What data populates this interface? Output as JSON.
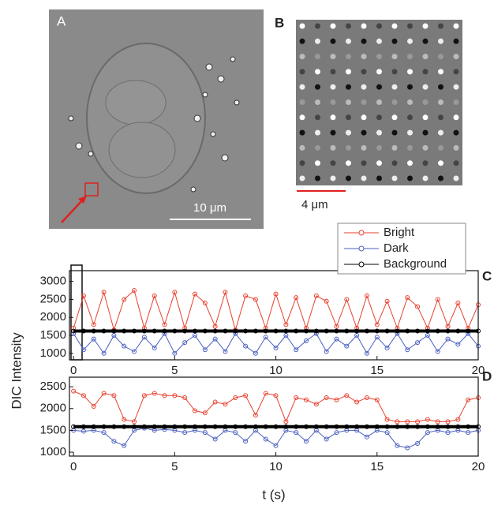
{
  "images": [
    {
      "label": "A",
      "scale_bar": "10 μm"
    },
    {
      "label": "B",
      "scale_bar": "4 μm"
    }
  ],
  "chart_data": [
    {
      "type": "line",
      "label": "C",
      "ylabel": "DIC Intensity",
      "legend": "top-right",
      "x": [
        0,
        0.5,
        1,
        1.5,
        2,
        2.5,
        3,
        3.5,
        4,
        4.5,
        5,
        5.5,
        6,
        6.5,
        7,
        7.5,
        8,
        8.5,
        9,
        9.5,
        10,
        10.5,
        11,
        11.5,
        12,
        12.5,
        13,
        13.5,
        14,
        14.5,
        15,
        15.5,
        16,
        16.5,
        17,
        17.5,
        18,
        18.5,
        19,
        19.5,
        20
      ],
      "series": [
        {
          "name": "Bright",
          "color": "#e8412f",
          "values": [
            1700,
            2600,
            1800,
            2700,
            1650,
            2500,
            2750,
            1700,
            2600,
            1800,
            2700,
            1700,
            2650,
            2400,
            1750,
            2700,
            1650,
            2600,
            2500,
            1700,
            2650,
            1800,
            2550,
            1700,
            2600,
            2450,
            1750,
            2500,
            1700,
            2600,
            1800,
            2450,
            1700,
            2550,
            2300,
            1700,
            2500,
            1750,
            2400,
            1700,
            2350
          ]
        },
        {
          "name": "Dark",
          "color": "#4a5fc0",
          "values": [
            1550,
            1100,
            1400,
            1000,
            1500,
            1200,
            1050,
            1450,
            1150,
            1550,
            1000,
            1300,
            1500,
            1100,
            1400,
            1050,
            1550,
            1200,
            1000,
            1450,
            1150,
            1500,
            1100,
            1350,
            1550,
            1050,
            1400,
            1200,
            1500,
            1000,
            1450,
            1150,
            1550,
            1100,
            1300,
            1500,
            1050,
            1400,
            1250,
            1550,
            1200
          ]
        },
        {
          "name": "Background",
          "color": "#000000",
          "values": [
            1620,
            1620,
            1620,
            1620,
            1620,
            1620,
            1620,
            1620,
            1620,
            1620,
            1620,
            1620,
            1620,
            1620,
            1620,
            1620,
            1620,
            1620,
            1620,
            1620,
            1620,
            1620,
            1620,
            1620,
            1620,
            1620,
            1620,
            1620,
            1620,
            1620,
            1620,
            1620,
            1620,
            1620,
            1620,
            1620,
            1620,
            1620,
            1620,
            1620,
            1620
          ]
        }
      ],
      "xlim": [
        -0.2,
        20
      ],
      "xticks": [
        0,
        5,
        10,
        15,
        20
      ],
      "ylim": [
        820,
        3300
      ],
      "yticks": [
        1000,
        1500,
        2000,
        2500,
        3000
      ]
    },
    {
      "type": "line",
      "label": "D",
      "xlabel": "t (s)",
      "x": [
        0,
        0.5,
        1,
        1.5,
        2,
        2.5,
        3,
        3.5,
        4,
        4.5,
        5,
        5.5,
        6,
        6.5,
        7,
        7.5,
        8,
        8.5,
        9,
        9.5,
        10,
        10.5,
        11,
        11.5,
        12,
        12.5,
        13,
        13.5,
        14,
        14.5,
        15,
        15.5,
        16,
        16.5,
        17,
        17.5,
        18,
        18.5,
        19,
        19.5,
        20
      ],
      "series": [
        {
          "color": "#e8412f",
          "values": [
            2400,
            2300,
            2050,
            2350,
            2300,
            1750,
            1700,
            2300,
            2350,
            2300,
            2300,
            2250,
            1950,
            1900,
            2150,
            2100,
            2250,
            2300,
            1850,
            2350,
            2300,
            1700,
            2250,
            2200,
            2100,
            2250,
            2200,
            2300,
            2150,
            2250,
            2200,
            1750,
            1700,
            1700,
            1700,
            1750,
            1700,
            1700,
            1750,
            2200,
            2250
          ]
        },
        {
          "color": "#4a5fc0",
          "values": [
            1500,
            1480,
            1500,
            1450,
            1250,
            1150,
            1500,
            1550,
            1500,
            1520,
            1500,
            1450,
            1500,
            1450,
            1300,
            1500,
            1450,
            1250,
            1500,
            1300,
            1150,
            1500,
            1450,
            1250,
            1500,
            1300,
            1450,
            1500,
            1500,
            1350,
            1500,
            1450,
            1150,
            1100,
            1200,
            1450,
            1500,
            1450,
            1500,
            1450,
            1500
          ]
        },
        {
          "color": "#000000",
          "values": [
            1585,
            1585,
            1585,
            1585,
            1585,
            1585,
            1585,
            1585,
            1585,
            1585,
            1585,
            1585,
            1585,
            1585,
            1585,
            1585,
            1585,
            1585,
            1585,
            1585,
            1585,
            1585,
            1585,
            1585,
            1585,
            1585,
            1585,
            1585,
            1585,
            1585,
            1585,
            1585,
            1585,
            1585,
            1585,
            1585,
            1585,
            1585,
            1585,
            1585,
            1585
          ]
        }
      ],
      "xlim": [
        -0.2,
        20
      ],
      "xticks": [
        0,
        5,
        10,
        15,
        20
      ],
      "ylim": [
        910,
        2720
      ],
      "yticks": [
        1000,
        1500,
        2000,
        2500
      ]
    }
  ]
}
